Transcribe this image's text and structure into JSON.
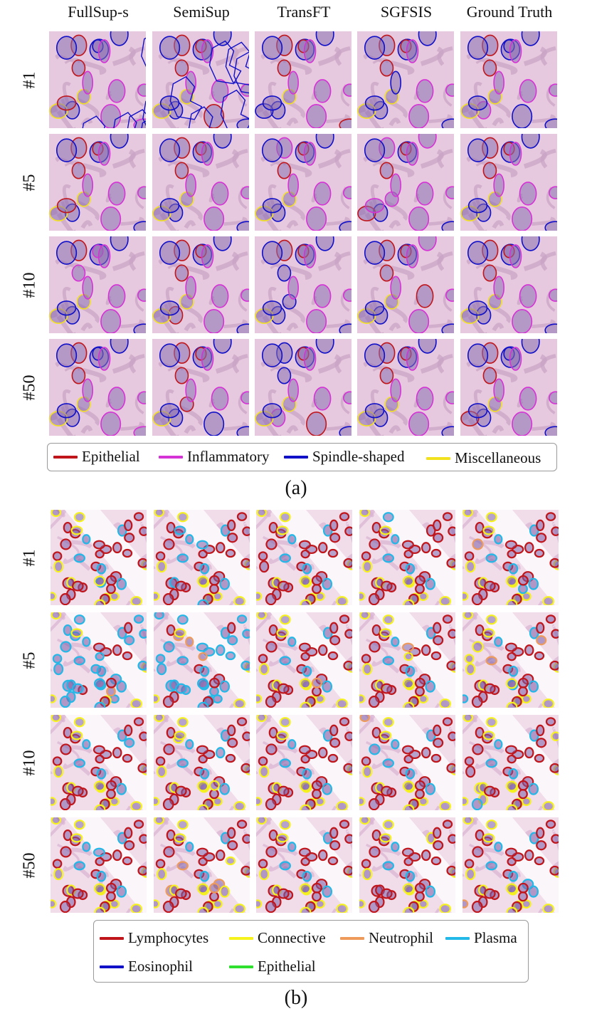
{
  "columns": [
    "FullSup-s",
    "SemiSup",
    "TransFT",
    "SGFSIS",
    "Ground Truth"
  ],
  "panel_a": {
    "rows": [
      "#1",
      "#5",
      "#10",
      "#50"
    ],
    "legend": [
      {
        "label": "Epithelial",
        "color": "#c0161b"
      },
      {
        "label": "Inflammatory",
        "color": "#d633d6"
      },
      {
        "label": "Spindle-shaped",
        "color": "#1010c8"
      },
      {
        "label": "Miscellaneous",
        "color": "#f2e21e"
      }
    ],
    "caption": "(a)"
  },
  "panel_b": {
    "rows": [
      "#1",
      "#5",
      "#10",
      "#50"
    ],
    "legend": [
      {
        "label": "Lymphocytes",
        "color": "#c0161b"
      },
      {
        "label": "Connective",
        "color": "#f6f21c"
      },
      {
        "label": "Neutrophil",
        "color": "#ee9a5a"
      },
      {
        "label": "Plasma",
        "color": "#22b8e8"
      },
      {
        "label": "Eosinophil",
        "color": "#1010c8"
      },
      {
        "label": "Epithelial",
        "color": "#2fe02f"
      }
    ],
    "caption": "(b)"
  }
}
